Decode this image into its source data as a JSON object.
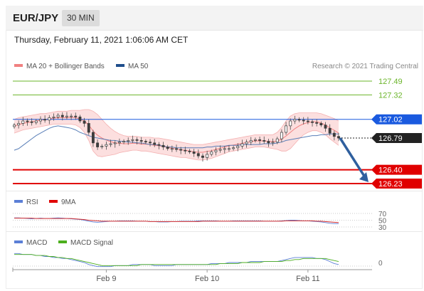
{
  "header": {
    "symbol": "EUR/JPY",
    "interval": "30 MIN"
  },
  "timestamp": "Thursday, February 11, 2021 1:06:06 AM CET",
  "legend": {
    "bollinger": {
      "label": "MA 20 + Bollinger Bands",
      "color": "#f08080"
    },
    "ma50": {
      "label": "MA 50",
      "color": "#1f4e8c"
    }
  },
  "credit": "Research © 2021 Trading Central",
  "rsi_legend": {
    "rsi": {
      "label": "RSI",
      "color": "#5b7fd6"
    },
    "ma9": {
      "label": "9MA",
      "color": "#e00000"
    }
  },
  "macd_legend": {
    "macd": {
      "label": "MACD",
      "color": "#5b7fd6"
    },
    "signal": {
      "label": "MACD Signal",
      "color": "#4caf1e"
    }
  },
  "chart_data": [
    {
      "type": "candlestick",
      "title": "EUR/JPY",
      "ylim": [
        126.1,
        127.6
      ],
      "x_labels": [
        "Feb 9",
        "Feb 10",
        "Feb 11"
      ],
      "levels": [
        {
          "value": 127.49,
          "label": "127.49",
          "kind": "resistance",
          "color": "#6bb52a"
        },
        {
          "value": 127.32,
          "label": "127.32",
          "kind": "resistance",
          "color": "#6bb52a"
        },
        {
          "value": 127.02,
          "label": "127.02",
          "kind": "pivot",
          "color": "#1a5adf"
        },
        {
          "value": 126.79,
          "label": "126.79",
          "kind": "last",
          "color": "#222222"
        },
        {
          "value": 126.4,
          "label": "126.40",
          "kind": "support",
          "color": "#e00000"
        },
        {
          "value": 126.23,
          "label": "126.23",
          "kind": "support",
          "color": "#e00000"
        }
      ],
      "forecast_arrow": {
        "from": 126.79,
        "to": 126.23,
        "color": "#2f5f9e"
      },
      "close": [
        126.95,
        126.97,
        127.0,
        126.99,
        126.98,
        127.0,
        127.02,
        127.01,
        127.04,
        127.05,
        127.07,
        127.05,
        127.06,
        127.06,
        127.05,
        127.0,
        126.97,
        126.86,
        126.73,
        126.68,
        126.69,
        126.71,
        126.72,
        126.73,
        126.74,
        126.75,
        126.76,
        126.77,
        126.76,
        126.75,
        126.74,
        126.73,
        126.71,
        126.7,
        126.68,
        126.66,
        126.66,
        126.65,
        126.64,
        126.63,
        126.62,
        126.6,
        126.57,
        126.55,
        126.59,
        126.62,
        126.64,
        126.65,
        126.66,
        126.66,
        126.67,
        126.69,
        126.72,
        126.74,
        126.76,
        126.77,
        126.76,
        126.75,
        126.73,
        126.74,
        126.78,
        126.86,
        126.94,
        127.0,
        127.02,
        127.01,
        127.0,
        126.99,
        126.98,
        126.97,
        126.95,
        126.91,
        126.85,
        126.81,
        126.79
      ],
      "ma50": [
        126.64,
        126.66,
        126.7,
        126.74,
        126.78,
        126.82,
        126.85,
        126.88,
        126.91,
        126.93,
        126.94,
        126.93,
        126.92,
        126.91,
        126.89,
        126.86,
        126.84,
        126.82,
        126.8,
        126.79,
        126.78,
        126.77,
        126.76,
        126.76,
        126.75,
        126.75,
        126.74,
        126.74,
        126.73,
        126.73,
        126.72,
        126.71,
        126.71,
        126.7,
        126.69,
        126.68,
        126.68,
        126.67,
        126.67,
        126.67,
        126.67,
        126.67,
        126.67,
        126.67,
        126.68,
        126.68,
        126.69,
        126.69,
        126.69,
        126.7,
        126.7,
        126.7,
        126.71,
        126.71,
        126.71,
        126.71,
        126.71,
        126.72,
        126.72,
        126.72,
        126.73,
        126.74,
        126.76,
        126.77,
        126.78,
        126.79,
        126.8,
        126.81,
        126.82,
        126.82,
        126.83,
        126.83,
        126.84,
        126.84,
        126.84
      ],
      "bollinger_upper": [
        127.02,
        127.04,
        127.05,
        127.06,
        127.07,
        127.08,
        127.09,
        127.09,
        127.1,
        127.11,
        127.12,
        127.12,
        127.12,
        127.13,
        127.13,
        127.13,
        127.14,
        127.14,
        127.12,
        127.08,
        127.02,
        126.96,
        126.91,
        126.87,
        126.84,
        126.82,
        126.81,
        126.81,
        126.81,
        126.8,
        126.8,
        126.8,
        126.79,
        126.79,
        126.78,
        126.77,
        126.76,
        126.75,
        126.74,
        126.73,
        126.72,
        126.71,
        126.71,
        126.71,
        126.72,
        126.73,
        126.74,
        126.75,
        126.76,
        126.77,
        126.78,
        126.79,
        126.8,
        126.81,
        126.82,
        126.83,
        126.83,
        126.83,
        126.83,
        126.83,
        126.86,
        126.92,
        127.0,
        127.06,
        127.09,
        127.1,
        127.1,
        127.1,
        127.1,
        127.1,
        127.09,
        127.07,
        127.05,
        127.03,
        127.0
      ],
      "bollinger_lower": [
        126.85,
        126.87,
        126.89,
        126.9,
        126.91,
        126.92,
        126.93,
        126.94,
        126.95,
        126.96,
        126.96,
        126.96,
        126.96,
        126.96,
        126.95,
        126.92,
        126.86,
        126.76,
        126.63,
        126.57,
        126.56,
        126.57,
        126.58,
        126.59,
        126.61,
        126.62,
        126.63,
        126.64,
        126.64,
        126.63,
        126.63,
        126.62,
        126.61,
        126.6,
        126.59,
        126.58,
        126.57,
        126.56,
        126.55,
        126.55,
        126.54,
        126.53,
        126.52,
        126.52,
        126.53,
        126.54,
        126.56,
        126.58,
        126.6,
        126.62,
        126.63,
        126.64,
        126.65,
        126.66,
        126.67,
        126.68,
        126.68,
        126.68,
        126.67,
        126.66,
        126.65,
        126.63,
        126.63,
        126.66,
        126.72,
        126.78,
        126.83,
        126.86,
        126.88,
        126.88,
        126.86,
        126.83,
        126.78,
        126.74,
        126.7
      ],
      "x_label_index": [
        21,
        44,
        67
      ]
    },
    {
      "type": "line",
      "title": "RSI",
      "yticks": [
        "70",
        "50",
        "30"
      ],
      "ylim": [
        30,
        70
      ],
      "series": [
        {
          "name": "RSI",
          "values": [
            57,
            57,
            56,
            55,
            54,
            55,
            56,
            55,
            55,
            56,
            57,
            56,
            55,
            54,
            53,
            52,
            50,
            47,
            45,
            44,
            45,
            46,
            47,
            47,
            48,
            48,
            48,
            48,
            47,
            47,
            47,
            46,
            46,
            45,
            45,
            45,
            46,
            46,
            47,
            47,
            47,
            47,
            48,
            48,
            48,
            48,
            48,
            47,
            47,
            47,
            48,
            48,
            48,
            48,
            48,
            48,
            48,
            47,
            47,
            47,
            47,
            48,
            49,
            50,
            50,
            49,
            48,
            48,
            47,
            46,
            45,
            43,
            41,
            40,
            40
          ]
        },
        {
          "name": "9MA",
          "values": [
            56,
            56,
            56,
            56,
            56,
            55,
            55,
            55,
            55,
            55,
            55,
            55,
            55,
            55,
            54,
            53,
            52,
            50,
            49,
            48,
            47,
            47,
            47,
            47,
            47,
            47,
            47,
            47,
            47,
            47,
            47,
            46,
            46,
            46,
            46,
            46,
            46,
            46,
            46,
            46,
            46,
            46,
            46,
            47,
            47,
            47,
            47,
            47,
            47,
            47,
            47,
            47,
            47,
            47,
            47,
            47,
            47,
            47,
            47,
            47,
            47,
            47,
            48,
            48,
            48,
            48,
            48,
            48,
            48,
            47,
            47,
            46,
            45,
            44,
            43
          ]
        }
      ]
    },
    {
      "type": "line",
      "title": "MACD",
      "yticks": [
        "0"
      ],
      "ylim": [
        -0.12,
        0.12
      ],
      "series": [
        {
          "name": "MACD",
          "values": [
            0.09,
            0.09,
            0.08,
            0.08,
            0.08,
            0.07,
            0.07,
            0.06,
            0.06,
            0.05,
            0.05,
            0.04,
            0.04,
            0.03,
            0.02,
            0.01,
            0.0,
            -0.02,
            -0.03,
            -0.04,
            -0.04,
            -0.04,
            -0.04,
            -0.03,
            -0.03,
            -0.03,
            -0.03,
            -0.02,
            -0.02,
            -0.02,
            -0.02,
            -0.02,
            -0.03,
            -0.03,
            -0.03,
            -0.03,
            -0.03,
            -0.02,
            -0.02,
            -0.02,
            -0.02,
            -0.02,
            -0.02,
            -0.02,
            -0.02,
            -0.01,
            -0.01,
            -0.01,
            -0.01,
            0.0,
            0.0,
            0.0,
            0.0,
            0.0,
            0.01,
            0.01,
            0.01,
            0.01,
            0.01,
            0.01,
            0.01,
            0.02,
            0.03,
            0.04,
            0.05,
            0.05,
            0.05,
            0.05,
            0.05,
            0.04,
            0.04,
            0.03,
            0.01,
            -0.01,
            -0.02
          ]
        },
        {
          "name": "MACD Signal",
          "values": [
            0.08,
            0.08,
            0.08,
            0.08,
            0.08,
            0.07,
            0.07,
            0.07,
            0.06,
            0.06,
            0.05,
            0.05,
            0.04,
            0.04,
            0.03,
            0.02,
            0.01,
            0.0,
            -0.01,
            -0.02,
            -0.03,
            -0.03,
            -0.03,
            -0.03,
            -0.03,
            -0.03,
            -0.03,
            -0.03,
            -0.03,
            -0.02,
            -0.02,
            -0.02,
            -0.02,
            -0.02,
            -0.02,
            -0.02,
            -0.02,
            -0.02,
            -0.02,
            -0.02,
            -0.02,
            -0.02,
            -0.02,
            -0.02,
            -0.02,
            -0.02,
            -0.02,
            -0.01,
            -0.01,
            -0.01,
            -0.01,
            -0.01,
            0.0,
            0.0,
            0.0,
            0.0,
            0.0,
            0.01,
            0.01,
            0.01,
            0.01,
            0.01,
            0.02,
            0.02,
            0.03,
            0.03,
            0.04,
            0.04,
            0.04,
            0.04,
            0.04,
            0.04,
            0.03,
            0.02,
            0.01
          ]
        }
      ]
    }
  ]
}
